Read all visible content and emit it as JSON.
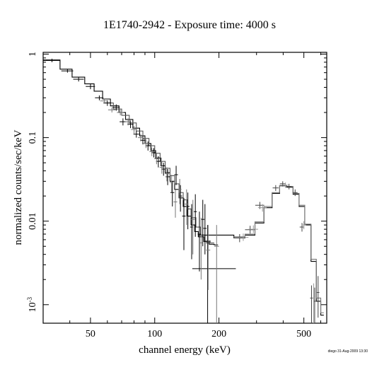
{
  "chart_data": {
    "type": "line",
    "title": "1E1740-2942 - Exposure time: 4000 s",
    "xlabel": "channel energy (keV)",
    "ylabel": "normalized counts/sec/keV",
    "xscale": "log",
    "yscale": "log",
    "xlim": [
      30,
      640
    ],
    "ylim": [
      0.0006,
      1.05
    ],
    "x_ticks": [
      {
        "value": 50,
        "label": "50"
      },
      {
        "value": 100,
        "label": "100"
      },
      {
        "value": 200,
        "label": "200"
      },
      {
        "value": 500,
        "label": "500"
      }
    ],
    "y_ticks": [
      {
        "value": 1,
        "label": "1"
      },
      {
        "value": 0.1,
        "label": "0.1"
      },
      {
        "value": 0.01,
        "label": "0.01"
      },
      {
        "value": 0.001,
        "label": "10",
        "sup": "-3"
      }
    ],
    "series": [
      {
        "style": "model",
        "color": "#000000",
        "steps": [
          [
            30,
            0.85
          ],
          [
            36,
            0.66
          ],
          [
            41,
            0.53
          ],
          [
            47,
            0.44
          ],
          [
            52,
            0.36
          ],
          [
            57,
            0.29
          ],
          [
            62,
            0.24
          ],
          [
            68,
            0.2
          ],
          [
            73,
            0.165
          ],
          [
            79,
            0.13
          ],
          [
            85,
            0.105
          ],
          [
            90,
            0.085
          ],
          [
            96,
            0.07
          ],
          [
            101,
            0.057
          ],
          [
            107,
            0.046
          ],
          [
            112,
            0.038
          ],
          [
            118,
            0.03
          ],
          [
            124,
            0.024
          ],
          [
            130,
            0.019
          ],
          [
            136,
            0.015
          ],
          [
            142,
            0.0115
          ],
          [
            148,
            0.009
          ],
          [
            154,
            0.0075
          ],
          [
            160,
            0.0065
          ],
          [
            170,
            0.0057
          ],
          [
            180,
            0.0053
          ],
          [
            190,
            0.0052
          ]
        ],
        "end": 198
      },
      {
        "style": "model",
        "color": "#555555",
        "steps": [
          [
            58,
            0.26
          ],
          [
            64,
            0.22
          ],
          [
            70,
            0.185
          ],
          [
            76,
            0.15
          ],
          [
            82,
            0.12
          ],
          [
            88,
            0.098
          ],
          [
            94,
            0.08
          ],
          [
            100,
            0.065
          ],
          [
            106,
            0.052
          ],
          [
            112,
            0.043
          ],
          [
            118,
            0.035
          ],
          [
            124,
            0.028
          ],
          [
            130,
            0.022
          ],
          [
            136,
            0.018
          ],
          [
            142,
            0.014
          ],
          [
            148,
            0.011
          ],
          [
            156,
            0.0085
          ],
          [
            164,
            0.0068
          ],
          [
            172,
            0.0058
          ],
          [
            182,
            0.0055
          ]
        ],
        "end": 190
      },
      {
        "style": "model",
        "color": "#000000",
        "steps": [
          [
            160,
            0.0068
          ],
          [
            235,
            0.0063
          ],
          [
            265,
            0.0068
          ],
          [
            295,
            0.0095
          ],
          [
            325,
            0.0145
          ],
          [
            355,
            0.0215
          ],
          [
            385,
            0.0265
          ],
          [
            415,
            0.0255
          ],
          [
            445,
            0.021
          ],
          [
            475,
            0.015
          ],
          [
            505,
            0.009
          ],
          [
            540,
            0.0033
          ],
          [
            572,
            0.0011
          ],
          [
            600,
            0.00075
          ]
        ],
        "end": 620
      },
      {
        "style": "model",
        "color": "#777777",
        "steps": [
          [
            235,
            0.0065
          ],
          [
            265,
            0.007
          ],
          [
            295,
            0.0098
          ],
          [
            325,
            0.015
          ],
          [
            355,
            0.022
          ],
          [
            385,
            0.0268
          ],
          [
            415,
            0.026
          ],
          [
            445,
            0.0215
          ],
          [
            475,
            0.0155
          ],
          [
            505,
            0.0092
          ],
          [
            540,
            0.0035
          ],
          [
            572,
            0.0012
          ],
          [
            600,
            0.0008
          ]
        ],
        "end": 620
      },
      {
        "style": "data",
        "color": "#000000",
        "points": [
          {
            "x": 33,
            "y": 0.84,
            "xerr": 3,
            "yerr": [
              0.8,
              0.88
            ]
          },
          {
            "x": 39,
            "y": 0.63,
            "xerr": 2.5,
            "yerr": [
              0.6,
              0.66
            ]
          },
          {
            "x": 44,
            "y": 0.5,
            "xerr": 2.5,
            "yerr": [
              0.47,
              0.53
            ]
          },
          {
            "x": 50,
            "y": 0.41,
            "xerr": 2.5,
            "yerr": [
              0.38,
              0.44
            ]
          },
          {
            "x": 55,
            "y": 0.3,
            "xerr": 2.5,
            "yerr": [
              0.28,
              0.32
            ]
          },
          {
            "x": 60,
            "y": 0.26,
            "xerr": 2.5,
            "yerr": [
              0.24,
              0.28
            ]
          },
          {
            "x": 66,
            "y": 0.23,
            "xerr": 2.5,
            "yerr": [
              0.21,
              0.25
            ]
          },
          {
            "x": 71,
            "y": 0.155,
            "xerr": 2.5,
            "yerr": [
              0.14,
              0.17
            ]
          },
          {
            "x": 77,
            "y": 0.145,
            "xerr": 2.5,
            "yerr": [
              0.13,
              0.16
            ]
          },
          {
            "x": 82,
            "y": 0.11,
            "xerr": 2.5,
            "yerr": [
              0.1,
              0.12
            ]
          },
          {
            "x": 88,
            "y": 0.093,
            "xerr": 2.5,
            "yerr": [
              0.083,
              0.104
            ]
          },
          {
            "x": 93,
            "y": 0.08,
            "xerr": 2.5,
            "yerr": [
              0.07,
              0.09
            ]
          },
          {
            "x": 99,
            "y": 0.066,
            "xerr": 2.5,
            "yerr": [
              0.058,
              0.075
            ]
          },
          {
            "x": 104,
            "y": 0.052,
            "xerr": 2.5,
            "yerr": [
              0.044,
              0.06
            ]
          },
          {
            "x": 110,
            "y": 0.042,
            "xerr": 2.5,
            "yerr": [
              0.035,
              0.05
            ]
          },
          {
            "x": 115,
            "y": 0.034,
            "xerr": 2.5,
            "yerr": [
              0.027,
              0.042
            ]
          },
          {
            "x": 121,
            "y": 0.022,
            "xerr": 2.5,
            "yerr": [
              0.015,
              0.03
            ]
          },
          {
            "x": 126,
            "y": 0.036,
            "xerr": 2.5,
            "yerr": [
              0.027,
              0.046
            ]
          },
          {
            "x": 132,
            "y": 0.02,
            "xerr": 2.5,
            "yerr": [
              0.013,
              0.027
            ]
          },
          {
            "x": 137,
            "y": 0.0115,
            "xerr": 2.5,
            "yerr": [
              0.0045,
              0.019
            ]
          },
          {
            "x": 143,
            "y": 0.015,
            "xerr": 2.5,
            "yerr": [
              0.008,
              0.022
            ]
          },
          {
            "x": 149,
            "y": 0.0085,
            "xerr": 2.5,
            "yerr": [
              0.0035,
              0.016
            ]
          },
          {
            "x": 155,
            "y": 0.013,
            "xerr": 2.5,
            "yerr": [
              0.0065,
              0.021
            ]
          },
          {
            "x": 162,
            "y": 0.007,
            "xerr": 3,
            "yerr": [
              0.0025,
              0.013
            ]
          },
          {
            "x": 168,
            "y": 0.0105,
            "xerr": 3,
            "yerr": [
              0.005,
              0.018
            ]
          },
          {
            "x": 172,
            "y": 0.0082,
            "xerr": 3,
            "yerr": [
              0.004,
              0.016
            ]
          },
          {
            "x": 177,
            "y": 0.0055,
            "xerr": 3,
            "yerr": [
              0.0006,
              0.009
            ]
          },
          {
            "x": 180,
            "y": 0.0027,
            "xerr": [
              150,
              240
            ]
          }
        ]
      },
      {
        "style": "data",
        "color": "#777777",
        "points": [
          {
            "x": 58,
            "y": 0.275,
            "xerr": 2.5,
            "yerr": [
              0.255,
              0.295
            ]
          },
          {
            "x": 63,
            "y": 0.215,
            "xerr": 2.5,
            "yerr": [
              0.2,
              0.23
            ]
          },
          {
            "x": 69,
            "y": 0.2,
            "xerr": 2.5,
            "yerr": [
              0.185,
              0.215
            ]
          },
          {
            "x": 75,
            "y": 0.155,
            "xerr": 2.5,
            "yerr": [
              0.14,
              0.17
            ]
          },
          {
            "x": 80,
            "y": 0.125,
            "xerr": 2.5,
            "yerr": [
              0.112,
              0.138
            ]
          },
          {
            "x": 86,
            "y": 0.1,
            "xerr": 2.5,
            "yerr": [
              0.09,
              0.11
            ]
          },
          {
            "x": 91,
            "y": 0.085,
            "xerr": 2.5,
            "yerr": [
              0.075,
              0.095
            ]
          },
          {
            "x": 97,
            "y": 0.068,
            "xerr": 2.5,
            "yerr": [
              0.06,
              0.076
            ]
          },
          {
            "x": 102,
            "y": 0.056,
            "xerr": 2.5,
            "yerr": [
              0.048,
              0.064
            ]
          },
          {
            "x": 108,
            "y": 0.044,
            "xerr": 2.5,
            "yerr": [
              0.037,
              0.052
            ]
          },
          {
            "x": 114,
            "y": 0.037,
            "xerr": 2.5,
            "yerr": [
              0.03,
              0.044
            ]
          },
          {
            "x": 120,
            "y": 0.029,
            "xerr": 2.5,
            "yerr": [
              0.022,
              0.036
            ]
          },
          {
            "x": 125,
            "y": 0.017,
            "xerr": 2.5,
            "yerr": [
              0.011,
              0.024
            ]
          },
          {
            "x": 131,
            "y": 0.024,
            "xerr": 2.5,
            "yerr": [
              0.016,
              0.032
            ]
          },
          {
            "x": 141,
            "y": 0.016,
            "xerr": 3,
            "yerr": [
              0.009,
              0.024
            ]
          },
          {
            "x": 151,
            "y": 0.0105,
            "xerr": 3,
            "yerr": [
              0.004,
              0.018
            ]
          },
          {
            "x": 165,
            "y": 0.0055,
            "xerr": 3,
            "yerr": [
              0.002,
              0.011
            ]
          },
          {
            "x": 178,
            "y": 0.0045,
            "xerr": 4,
            "yerr": [
              0.0015,
              0.009
            ]
          },
          {
            "x": 195,
            "y": 0.005,
            "xerr": 5,
            "yerr": [
              0.0006,
              0.009
            ]
          }
        ]
      },
      {
        "style": "data",
        "color": "#444444",
        "points": [
          {
            "x": 250,
            "y": 0.0063,
            "xerr": 15,
            "yerr": [
              0.0056,
              0.007
            ]
          },
          {
            "x": 280,
            "y": 0.0079,
            "xerr": 15,
            "yerr": [
              0.0071,
              0.0088
            ]
          },
          {
            "x": 311,
            "y": 0.0155,
            "xerr": 15,
            "yerr": [
              0.014,
              0.017
            ]
          },
          {
            "x": 369,
            "y": 0.025,
            "xerr": 12,
            "yerr": [
              0.023,
              0.027
            ]
          },
          {
            "x": 398,
            "y": 0.028,
            "xerr": 12,
            "yerr": [
              0.026,
              0.03
            ]
          },
          {
            "x": 426,
            "y": 0.026,
            "xerr": 12,
            "yerr": [
              0.024,
              0.028
            ]
          },
          {
            "x": 455,
            "y": 0.022,
            "xerr": 12,
            "yerr": [
              0.02,
              0.024
            ]
          },
          {
            "x": 490,
            "y": 0.0085,
            "xerr": 12,
            "yerr": [
              0.0075,
              0.0095
            ]
          },
          {
            "x": 543,
            "y": 0.0012,
            "xerr": 8,
            "yerr": [
              0.0006,
              0.0017
            ]
          },
          {
            "x": 562,
            "y": 0.0011,
            "xerr": 8,
            "yerr": [
              0.0006,
              0.0016
            ]
          },
          {
            "x": 583,
            "y": 0.0014,
            "xerr": 8,
            "yerr": [
              0.0007,
              0.0022
            ]
          }
        ]
      },
      {
        "style": "data",
        "color": "#999999",
        "points": [
          {
            "x": 260,
            "y": 0.0064,
            "xerr": 15,
            "yerr": [
              0.0058,
              0.0071
            ]
          },
          {
            "x": 290,
            "y": 0.008,
            "xerr": 15,
            "yerr": [
              0.0072,
              0.0089
            ]
          },
          {
            "x": 320,
            "y": 0.0145,
            "xerr": 15,
            "yerr": [
              0.013,
              0.016
            ]
          },
          {
            "x": 410,
            "y": 0.027,
            "xerr": 12,
            "yerr": [
              0.025,
              0.029
            ]
          },
          {
            "x": 500,
            "y": 0.009,
            "xerr": 12,
            "yerr": [
              0.008,
              0.01
            ]
          },
          {
            "x": 556,
            "y": 0.0012,
            "xerr": 8,
            "yerr": [
              0.0006,
              0.0018
            ]
          }
        ]
      }
    ]
  },
  "footer": "diego 31-Aug-2009 13:30"
}
